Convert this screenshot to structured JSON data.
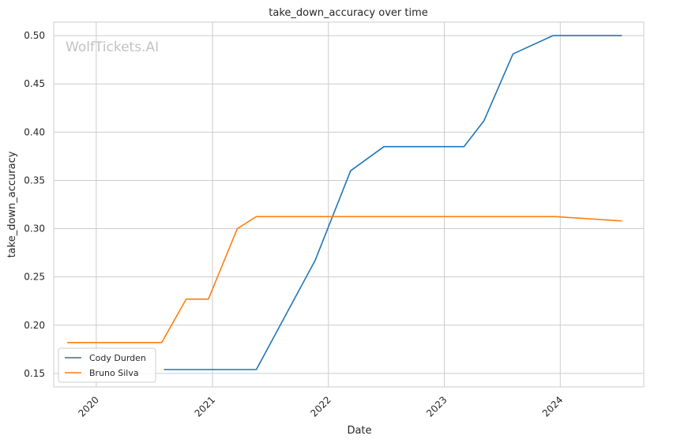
{
  "chart_data": {
    "type": "line",
    "title": "take_down_accuracy over time",
    "xlabel": "Date",
    "ylabel": "take_down_accuracy",
    "watermark": "WolfTickets.AI",
    "x_ticks": [
      "2020",
      "2021",
      "2022",
      "2023",
      "2024"
    ],
    "y_ticks": [
      "0.15",
      "0.20",
      "0.25",
      "0.30",
      "0.35",
      "0.40",
      "0.45",
      "0.50"
    ],
    "xlim": [
      "2019-08-20",
      "2024-09-20"
    ],
    "ylim": [
      0.136,
      0.514
    ],
    "grid": true,
    "legend_position": "lower-left",
    "series": [
      {
        "name": "Cody Durden",
        "color": "#1f77b4",
        "points": [
          [
            "2020-08-01",
            0.154
          ],
          [
            "2021-05-19",
            0.154
          ],
          [
            "2021-11-20",
            0.267
          ],
          [
            "2022-03-12",
            0.36
          ],
          [
            "2022-06-25",
            0.385
          ],
          [
            "2023-03-04",
            0.385
          ],
          [
            "2023-05-06",
            0.412
          ],
          [
            "2023-08-05",
            0.481
          ],
          [
            "2023-12-09",
            0.5
          ],
          [
            "2024-07-13",
            0.5
          ]
        ]
      },
      {
        "name": "Bruno Silva",
        "color": "#ff7f0e",
        "points": [
          [
            "2019-10-01",
            0.182
          ],
          [
            "2020-07-25",
            0.182
          ],
          [
            "2020-10-10",
            0.227
          ],
          [
            "2020-12-19",
            0.227
          ],
          [
            "2021-03-20",
            0.3
          ],
          [
            "2021-05-19",
            0.3125
          ],
          [
            "2023-12-16",
            0.3125
          ],
          [
            "2024-07-13",
            0.308
          ]
        ]
      }
    ]
  }
}
